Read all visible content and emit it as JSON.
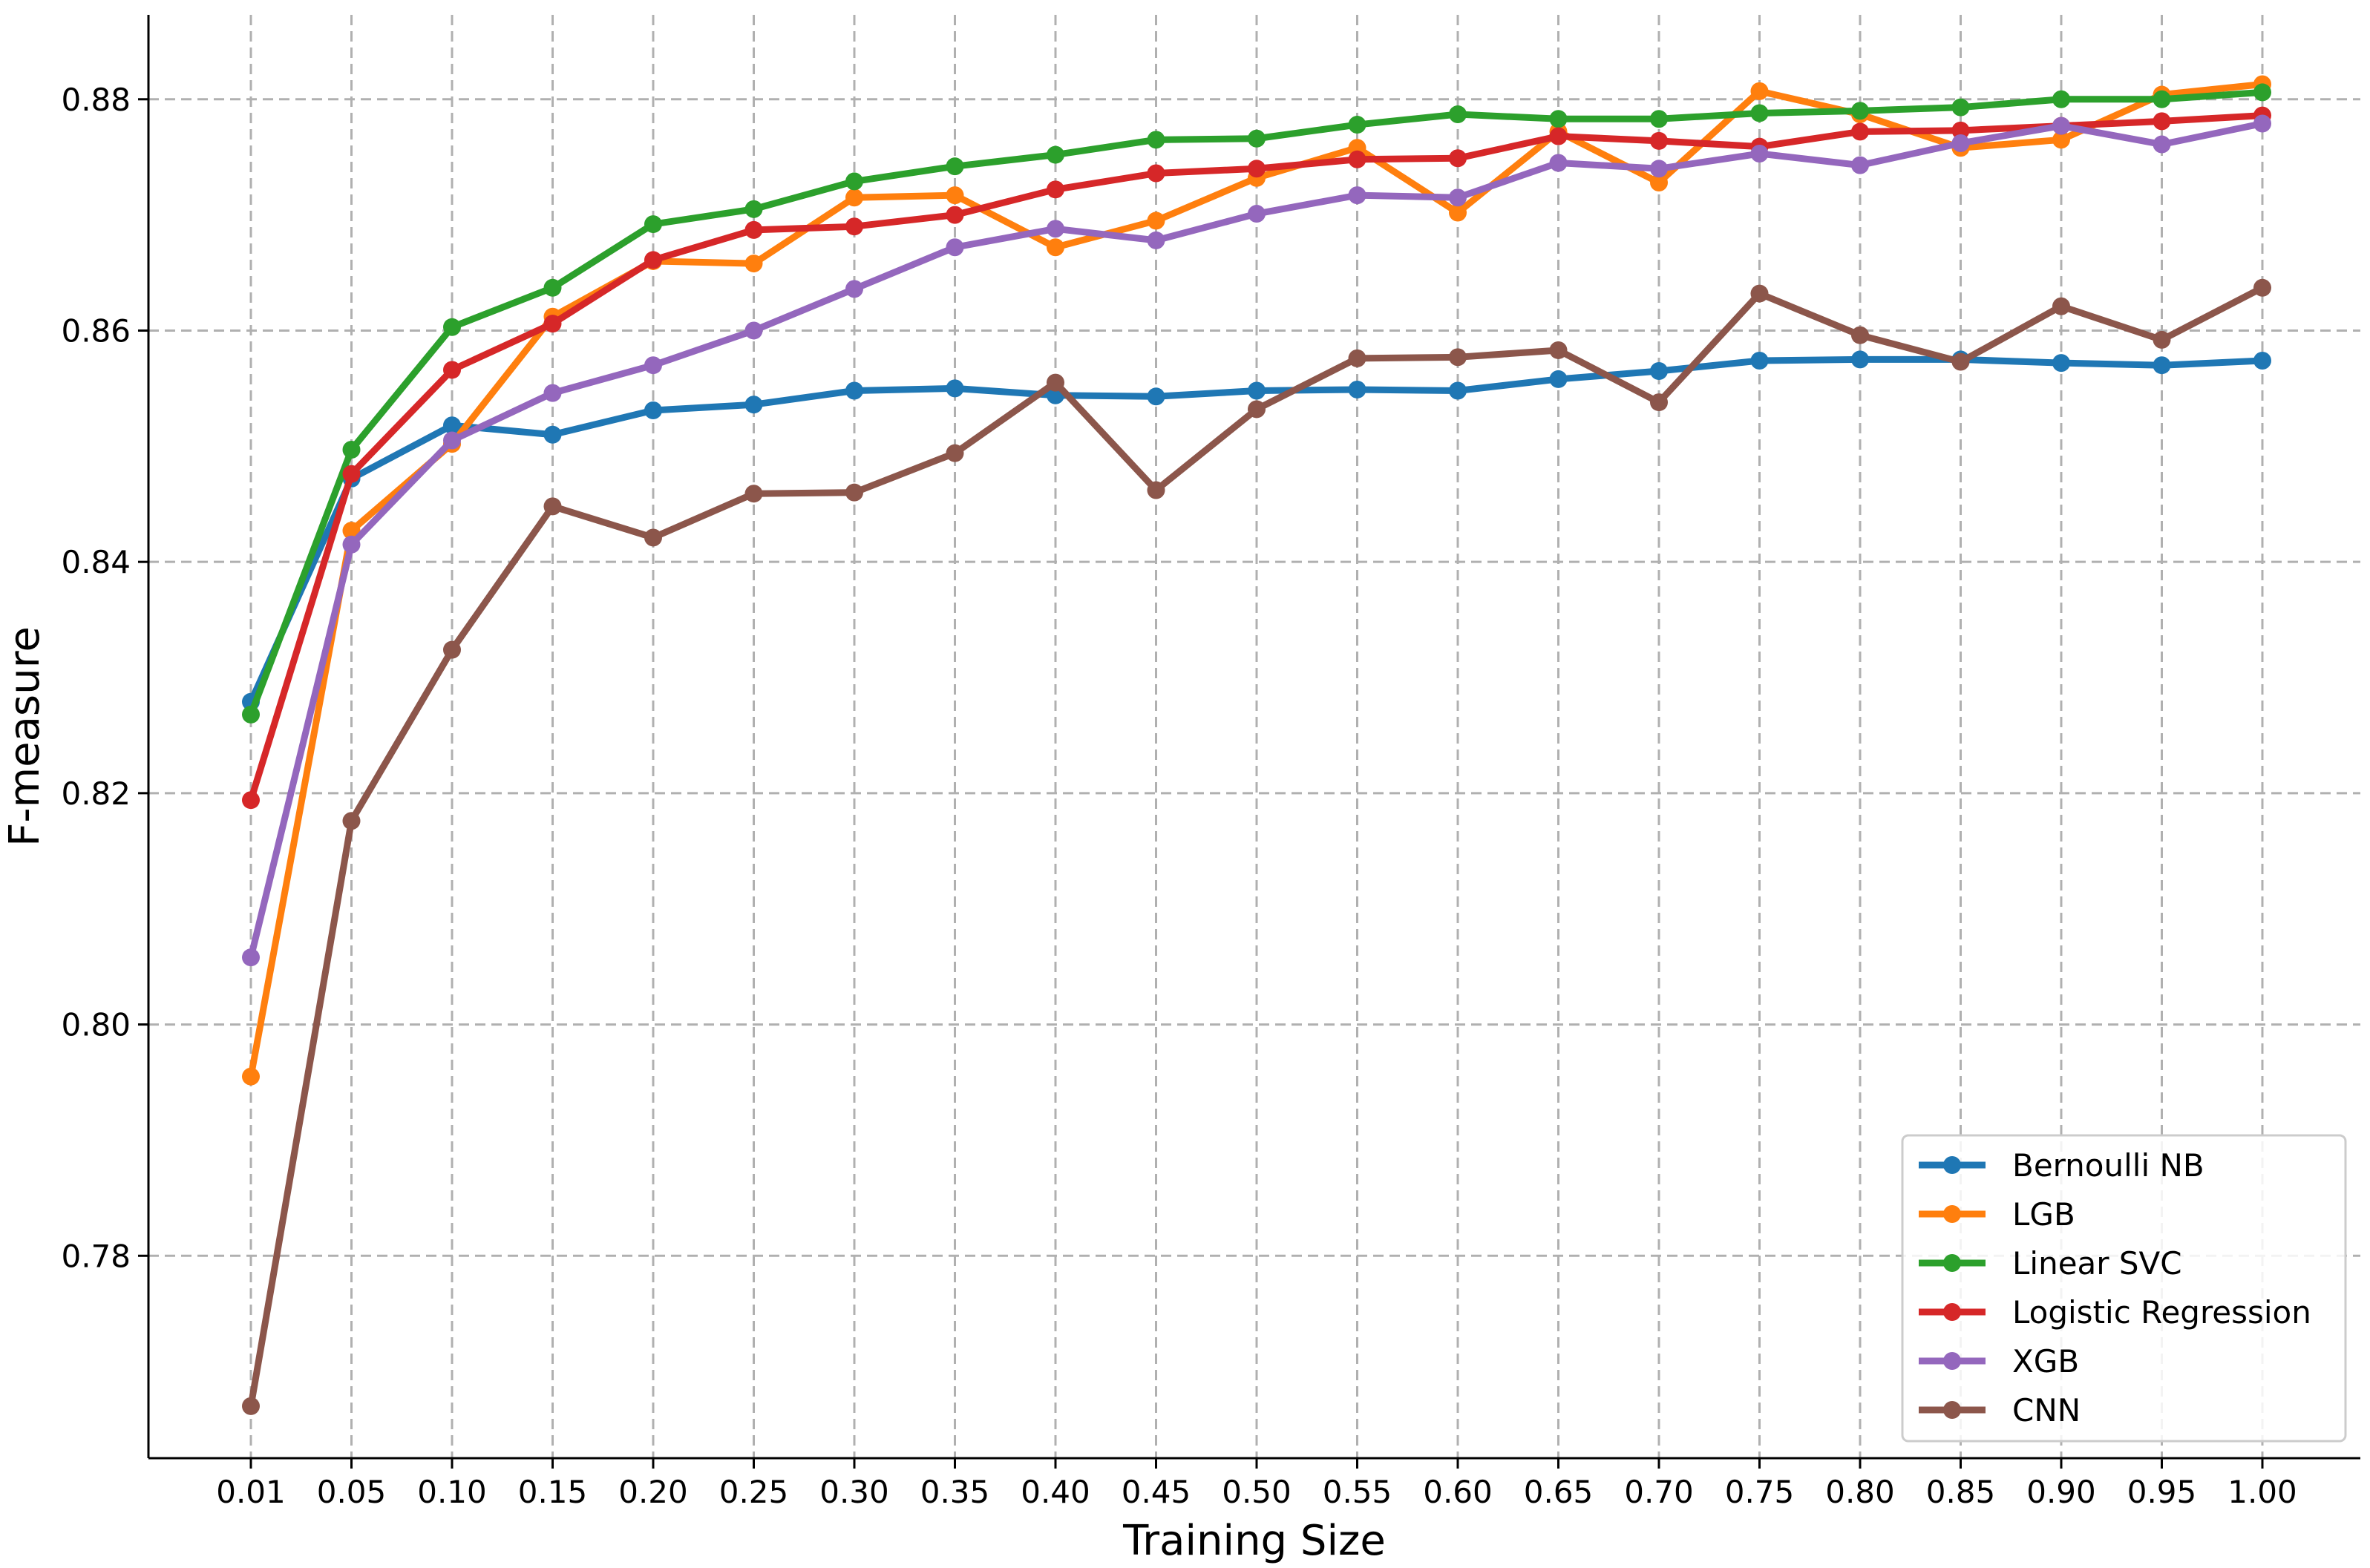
{
  "chart_data": {
    "type": "line",
    "xlabel": "Training Size",
    "ylabel": "F-measure",
    "x": [
      0.01,
      0.05,
      0.1,
      0.15,
      0.2,
      0.25,
      0.3,
      0.35,
      0.4,
      0.45,
      0.5,
      0.55,
      0.6,
      0.65,
      0.7,
      0.75,
      0.8,
      0.85,
      0.9,
      0.95,
      1.0
    ],
    "x_tick_labels": [
      "0.01",
      "0.05",
      "0.10",
      "0.15",
      "0.20",
      "0.25",
      "0.30",
      "0.35",
      "0.40",
      "0.45",
      "0.50",
      "0.55",
      "0.60",
      "0.65",
      "0.70",
      "0.75",
      "0.80",
      "0.85",
      "0.90",
      "0.95",
      "1.00"
    ],
    "y_ticks": [
      0.78,
      0.8,
      0.82,
      0.84,
      0.86,
      0.88
    ],
    "y_tick_labels": [
      "0.78",
      "0.80",
      "0.82",
      "0.84",
      "0.86",
      "0.88"
    ],
    "ylim": [
      0.7625,
      0.8873
    ],
    "grid": true,
    "legend_position": "lower-right",
    "series": [
      {
        "name": "Bernoulli NB",
        "color": "#1f77b4",
        "values": [
          0.8279,
          0.8472,
          0.8518,
          0.851,
          0.8531,
          0.8536,
          0.8548,
          0.855,
          0.8544,
          0.8543,
          0.8548,
          0.8549,
          0.8548,
          0.8558,
          0.8565,
          0.8574,
          0.8575,
          0.8575,
          0.8572,
          0.857,
          0.8574
        ]
      },
      {
        "name": "LGB",
        "color": "#ff7f0e",
        "values": [
          0.7955,
          0.8427,
          0.8502,
          0.8612,
          0.866,
          0.8658,
          0.8715,
          0.8717,
          0.8672,
          0.8695,
          0.8732,
          0.8758,
          0.8702,
          0.8772,
          0.8728,
          0.8807,
          0.8787,
          0.8758,
          0.8765,
          0.8804,
          0.8813
        ]
      },
      {
        "name": "Linear SVC",
        "color": "#2ca02c",
        "values": [
          0.8268,
          0.8497,
          0.8603,
          0.8637,
          0.8692,
          0.8705,
          0.8729,
          0.8742,
          0.8752,
          0.8765,
          0.8766,
          0.8778,
          0.8787,
          0.8783,
          0.8783,
          0.8788,
          0.879,
          0.8793,
          0.88,
          0.88,
          0.8806
        ]
      },
      {
        "name": "Logistic Regression",
        "color": "#d62728",
        "values": [
          0.8194,
          0.8476,
          0.8566,
          0.8606,
          0.8661,
          0.8687,
          0.869,
          0.87,
          0.8722,
          0.8736,
          0.874,
          0.8748,
          0.8749,
          0.8768,
          0.8764,
          0.8759,
          0.8772,
          0.8773,
          0.8777,
          0.8781,
          0.8786
        ]
      },
      {
        "name": "XGB",
        "color": "#9467bd",
        "values": [
          0.8058,
          0.8415,
          0.8505,
          0.8546,
          0.857,
          0.86,
          0.8636,
          0.8672,
          0.8688,
          0.8678,
          0.8701,
          0.8717,
          0.8715,
          0.8745,
          0.874,
          0.8753,
          0.8743,
          0.8762,
          0.8777,
          0.8761,
          0.8779
        ]
      },
      {
        "name": "CNN",
        "color": "#8c564b",
        "values": [
          0.767,
          0.8176,
          0.8324,
          0.8448,
          0.8421,
          0.8459,
          0.846,
          0.8494,
          0.8555,
          0.8462,
          0.8532,
          0.8576,
          0.8577,
          0.8583,
          0.8538,
          0.8632,
          0.8596,
          0.8573,
          0.8621,
          0.8592,
          0.8637
        ]
      }
    ]
  }
}
